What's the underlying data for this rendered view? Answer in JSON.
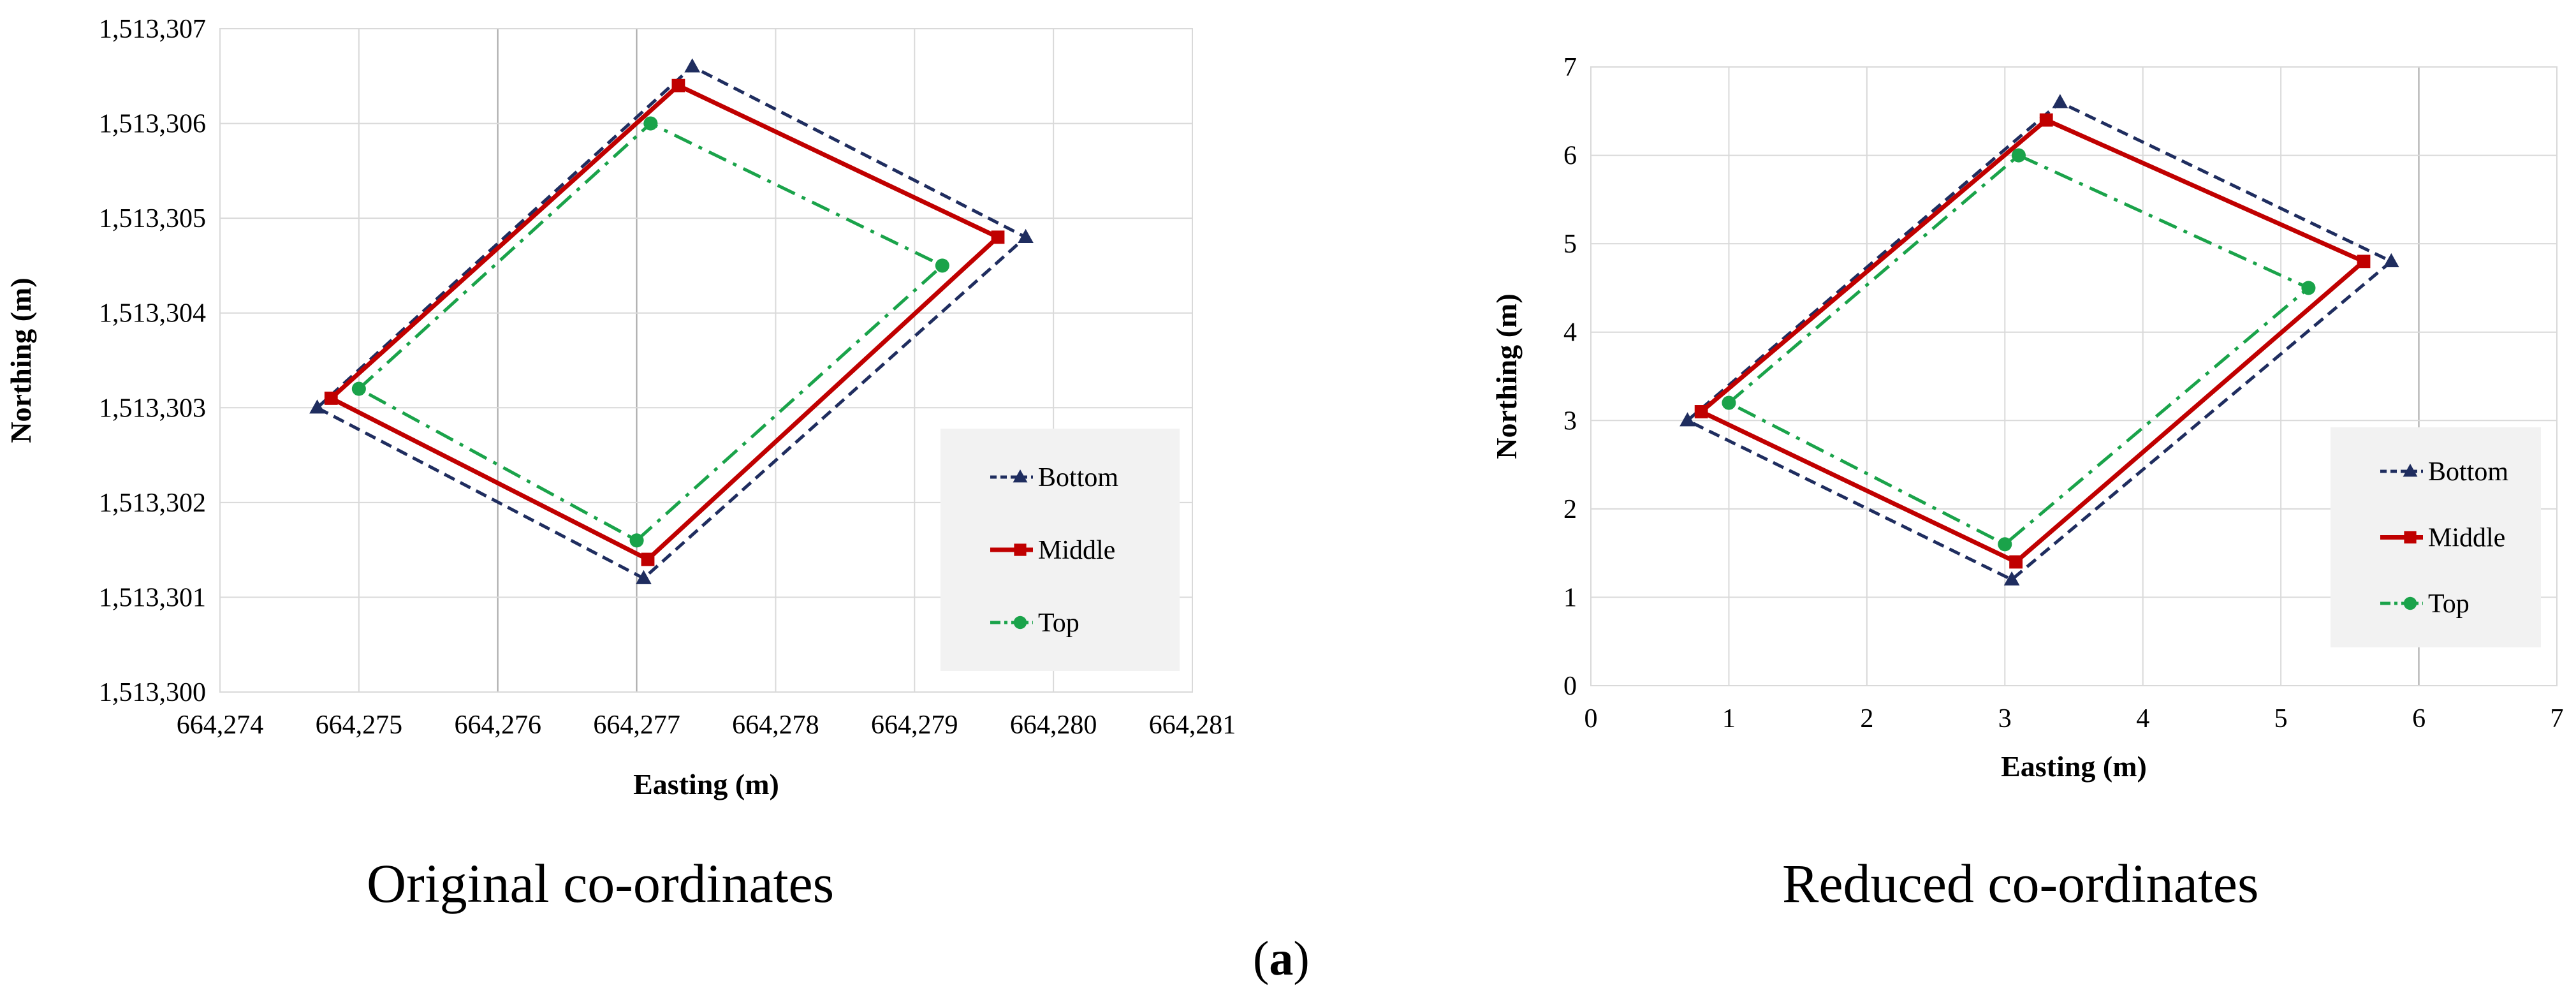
{
  "colors": {
    "bottom": "#1f2d5f",
    "middle": "#c00000",
    "top": "#1aa34a",
    "grid": "#d9d9d9",
    "gridMajor": "#a6a6a6",
    "legendBg": "#f2f2f2"
  },
  "captions": {
    "left": "Original co-ordinates",
    "right": "Reduced co-ordinates",
    "figure_open": "(",
    "figure_letter": "a",
    "figure_close": ")"
  },
  "chart_data": [
    {
      "type": "line",
      "title": "Original co-ordinates",
      "xlabel": "Easting (m)",
      "ylabel": "Northing (m)",
      "xlim": [
        664274,
        664281
      ],
      "ylim": [
        1513300,
        1513307
      ],
      "xticks": [
        "664,274",
        "664,275",
        "664,276",
        "664,277",
        "664,278",
        "664,279",
        "664,280",
        "664,281"
      ],
      "yticks": [
        "1,513,300",
        "1,513,301",
        "1,513,302",
        "1,513,303",
        "1,513,304",
        "1,513,305",
        "1,513,306",
        "1,513,307"
      ],
      "legend_position": "right",
      "series": [
        {
          "name": "Bottom",
          "marker": "triangle",
          "style": "dashed",
          "x": [
            664274.7,
            664277.4,
            664279.8,
            664277.05,
            664274.7
          ],
          "y": [
            1513303.0,
            1513306.6,
            1513304.8,
            1513301.2,
            1513303.0
          ]
        },
        {
          "name": "Middle",
          "marker": "square",
          "style": "solid",
          "x": [
            664274.8,
            664277.3,
            664279.6,
            664277.08,
            664274.8
          ],
          "y": [
            1513303.1,
            1513306.4,
            1513304.8,
            1513301.4,
            1513303.1
          ]
        },
        {
          "name": "Top",
          "marker": "circle",
          "style": "dashdot",
          "x": [
            664275.0,
            664277.1,
            664279.2,
            664277.0,
            664275.0
          ],
          "y": [
            1513303.2,
            1513306.0,
            1513304.5,
            1513301.6,
            1513303.2
          ]
        }
      ]
    },
    {
      "type": "line",
      "title": "Reduced co-ordinates",
      "xlabel": "Easting (m)",
      "ylabel": "Northing (m)",
      "xlim": [
        0,
        7
      ],
      "ylim": [
        0,
        7
      ],
      "xticks": [
        "0",
        "1",
        "2",
        "3",
        "4",
        "5",
        "6",
        "7"
      ],
      "yticks": [
        "0",
        "1",
        "2",
        "3",
        "4",
        "5",
        "6",
        "7"
      ],
      "legend_position": "right",
      "series": [
        {
          "name": "Bottom",
          "marker": "triangle",
          "style": "dashed",
          "x": [
            0.7,
            3.4,
            5.8,
            3.05,
            0.7
          ],
          "y": [
            3.0,
            6.6,
            4.8,
            1.2,
            3.0
          ]
        },
        {
          "name": "Middle",
          "marker": "square",
          "style": "solid",
          "x": [
            0.8,
            3.3,
            5.6,
            3.08,
            0.8
          ],
          "y": [
            3.1,
            6.4,
            4.8,
            1.4,
            3.1
          ]
        },
        {
          "name": "Top",
          "marker": "circle",
          "style": "dashdot",
          "x": [
            1.0,
            3.1,
            5.2,
            3.0,
            1.0
          ],
          "y": [
            3.2,
            6.0,
            4.5,
            1.6,
            3.2
          ]
        }
      ]
    }
  ]
}
